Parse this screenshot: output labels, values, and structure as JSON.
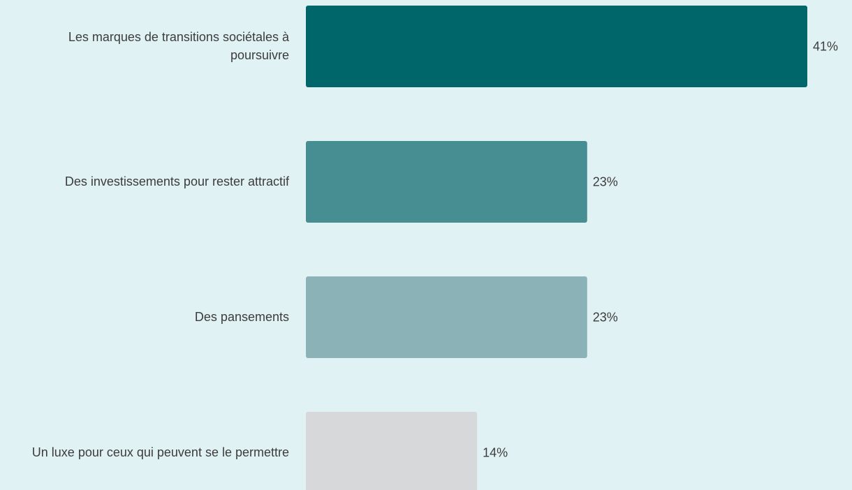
{
  "chart_data": {
    "type": "bar",
    "orientation": "horizontal",
    "categories": [
      "Les marques de transitions sociétales à poursuivre",
      "Des investissements pour rester attractif",
      "Des pansements",
      "Un luxe pour ceux qui peuvent se le permettre"
    ],
    "values": [
      41,
      23,
      23,
      14
    ],
    "value_labels": [
      "41%",
      "23%",
      "23%",
      "14%"
    ],
    "colors": [
      "#00666a",
      "#468e92",
      "#8bb3b7",
      "#d6d8da"
    ],
    "xlim": [
      0,
      41
    ],
    "grid": false,
    "legend": "none"
  }
}
